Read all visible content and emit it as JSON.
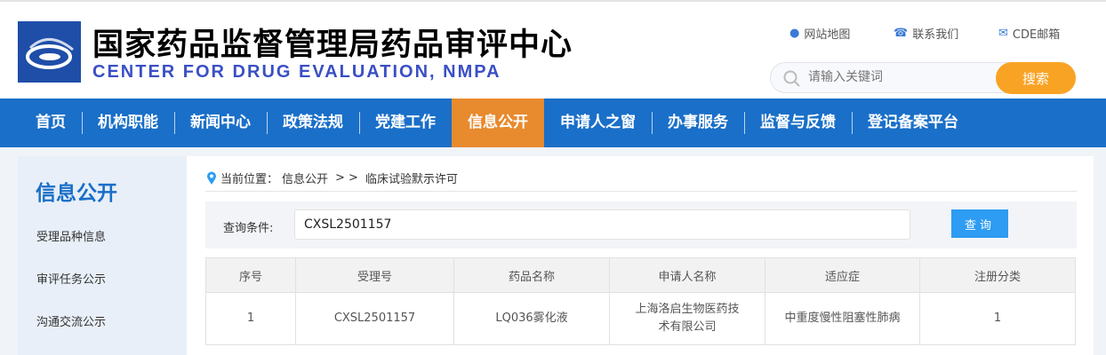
{
  "header": {
    "title": "国家药品监督管理局药品审评中心",
    "subtitle": "CENTER FOR DRUG EVALUATION, NMPA",
    "links": [
      {
        "icon": "map-pin-icon",
        "label": "网站地图"
      },
      {
        "icon": "phone-icon",
        "label": "联系我们"
      },
      {
        "icon": "mail-icon",
        "label": "CDE邮箱"
      }
    ],
    "search": {
      "placeholder": "请输入关键词",
      "button": "搜索"
    }
  },
  "nav": {
    "items": [
      "首页",
      "机构职能",
      "新闻中心",
      "政策法规",
      "党建工作",
      "信息公开",
      "申请人之窗",
      "办事服务",
      "监督与反馈",
      "登记备案平台"
    ],
    "active": "信息公开"
  },
  "sidebar": {
    "title": "信息公开",
    "items": [
      "受理品种信息",
      "审评任务公示",
      "沟通交流公示"
    ]
  },
  "breadcrumb": {
    "label": "当前位置：",
    "path": "信息公开",
    "sep": "> >",
    "current": "临床试验默示许可"
  },
  "query": {
    "label": "查询条件:",
    "value": "CXSL2501157",
    "button": "查询"
  },
  "table": {
    "headers": [
      "序号",
      "受理号",
      "药品名称",
      "申请人名称",
      "适应症",
      "注册分类"
    ],
    "rows": [
      [
        "1",
        "CXSL2501157",
        "LQ036雾化液",
        "上海洛启生物医药技术有限公司",
        "中重度慢性阻塞性肺病",
        "1"
      ]
    ]
  },
  "colors": {
    "nav": "#1a6fc8",
    "active": "#e88a2e",
    "search_button": "#f9a324",
    "query_button": "#2d9cf2"
  }
}
